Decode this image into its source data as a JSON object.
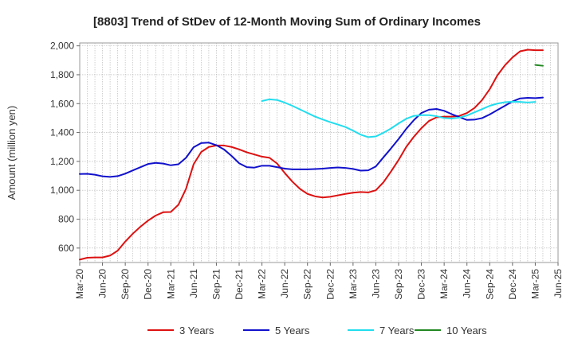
{
  "chart_data": {
    "type": "line",
    "title": "[8803]  Trend of StDev of 12-Month Moving Sum of Ordinary Incomes",
    "xlabel": "",
    "ylabel": "Amount (million yen)",
    "ylim": [
      500,
      2020
    ],
    "yticks": [
      600,
      800,
      1000,
      1200,
      1400,
      1600,
      1800,
      2000
    ],
    "ytick_labels": [
      "600",
      "800",
      "1,000",
      "1,200",
      "1,400",
      "1,600",
      "1,800",
      "2,000"
    ],
    "x_range": [
      0,
      63
    ],
    "x_tick_labels": [
      "Mar-20",
      "Jun-20",
      "Sep-20",
      "Dec-20",
      "Mar-21",
      "Jun-21",
      "Sep-21",
      "Dec-21",
      "Mar-22",
      "Jun-22",
      "Sep-22",
      "Dec-22",
      "Mar-23",
      "Jun-23",
      "Sep-23",
      "Dec-23",
      "Mar-24",
      "Jun-24",
      "Sep-24",
      "Dec-24",
      "Mar-25",
      "Jun-25"
    ],
    "grid": true,
    "legend_position": "bottom",
    "series": [
      {
        "name": "3 Years",
        "color": "#dd1111",
        "start_index": 0,
        "values": [
          520,
          533,
          535,
          535,
          548,
          582,
          645,
          700,
          748,
          790,
          825,
          848,
          850,
          900,
          1010,
          1180,
          1265,
          1300,
          1310,
          1310,
          1300,
          1283,
          1263,
          1248,
          1233,
          1225,
          1185,
          1120,
          1060,
          1010,
          975,
          958,
          950,
          955,
          965,
          975,
          983,
          988,
          985,
          1000,
          1055,
          1130,
          1210,
          1300,
          1370,
          1430,
          1480,
          1505,
          1510,
          1510,
          1515,
          1535,
          1570,
          1625,
          1700,
          1795,
          1865,
          1920,
          1962,
          1973,
          1970,
          1970
        ]
      },
      {
        "name": "5 Years",
        "color": "#1111cc",
        "start_index": 0,
        "values": [
          1113,
          1114,
          1108,
          1097,
          1093,
          1098,
          1115,
          1138,
          1160,
          1182,
          1190,
          1185,
          1173,
          1180,
          1225,
          1298,
          1327,
          1330,
          1312,
          1283,
          1238,
          1187,
          1160,
          1157,
          1170,
          1170,
          1160,
          1150,
          1145,
          1145,
          1145,
          1147,
          1150,
          1155,
          1158,
          1155,
          1148,
          1136,
          1138,
          1165,
          1228,
          1290,
          1355,
          1425,
          1485,
          1535,
          1558,
          1563,
          1550,
          1527,
          1507,
          1487,
          1489,
          1500,
          1525,
          1555,
          1585,
          1615,
          1636,
          1640,
          1638,
          1642
        ]
      },
      {
        "name": "7 Years",
        "color": "#22ddee",
        "start_index": 24,
        "values": [
          1618,
          1630,
          1625,
          1607,
          1585,
          1560,
          1535,
          1510,
          1490,
          1472,
          1455,
          1438,
          1413,
          1385,
          1368,
          1373,
          1398,
          1428,
          1463,
          1495,
          1515,
          1520,
          1520,
          1513,
          1500,
          1497,
          1503,
          1518,
          1540,
          1562,
          1585,
          1600,
          1610,
          1613,
          1612,
          1608,
          1612
        ]
      },
      {
        "name": "10 Years",
        "color": "#228822",
        "start_index": 60,
        "values": [
          1868,
          1862
        ]
      }
    ]
  }
}
